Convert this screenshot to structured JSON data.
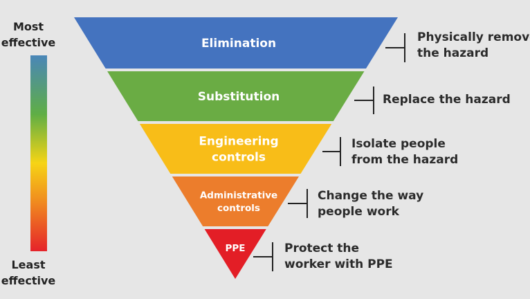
{
  "scale": {
    "top_label_line1": "Most",
    "top_label_line2": "effective",
    "bottom_label_line1": "Least",
    "bottom_label_line2": "effective",
    "gradient_colors": [
      "#4a86b8",
      "#5fae45",
      "#f6d415",
      "#f08a1f",
      "#e5232a"
    ]
  },
  "hierarchy": [
    {
      "label_lines": [
        "Elimination"
      ],
      "color": "#4473bf",
      "description_lines": [
        "Physically remove",
        "the hazard"
      ]
    },
    {
      "label_lines": [
        "Substitution"
      ],
      "color": "#6aac44",
      "description_lines": [
        "Replace the hazard"
      ]
    },
    {
      "label_lines": [
        "Engineering",
        "controls"
      ],
      "color": "#f8bd18",
      "description_lines": [
        "Isolate people",
        "from the hazard"
      ]
    },
    {
      "label_lines": [
        "Administrative",
        "controls"
      ],
      "color": "#ec7d2c",
      "description_lines": [
        "Change the way",
        "people work"
      ]
    },
    {
      "label_lines": [
        "PPE"
      ],
      "color": "#e31e26",
      "description_lines": [
        "Protect the",
        "worker with PPE"
      ]
    }
  ]
}
